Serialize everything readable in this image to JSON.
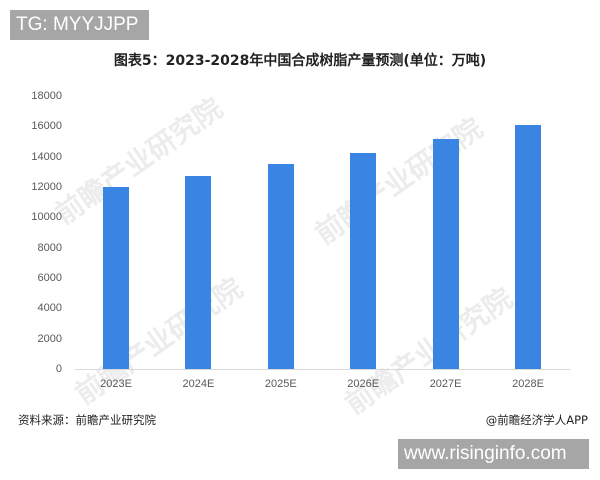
{
  "badge": {
    "tg": "TG: MYYJJPP"
  },
  "chart_data": {
    "type": "bar",
    "title": "图表5：2023-2028年中国合成树脂产量预测(单位：万吨)",
    "categories": [
      "2023E",
      "2024E",
      "2025E",
      "2026E",
      "2027E",
      "2028E"
    ],
    "values": [
      12000,
      12700,
      13500,
      14250,
      15150,
      16100
    ],
    "series": [
      {
        "name": "合成树脂产量",
        "values": [
          12000,
          12700,
          13500,
          14250,
          15150,
          16100
        ],
        "color": "#3a84e4"
      }
    ],
    "xlabel": "",
    "ylabel": "",
    "ylim": [
      0,
      18000
    ],
    "yticks": [
      "18000",
      "16000",
      "14000",
      "12000",
      "10000",
      "8000",
      "6000",
      "4000",
      "2000",
      "0"
    ],
    "grid": false,
    "legend": "none"
  },
  "watermark": {
    "text": "前瞻产业研究院"
  },
  "footer": {
    "source": "资料来源：前瞻产业研究院",
    "credit": "@前瞻经济学人APP",
    "url": "www.risinginfo.com"
  }
}
